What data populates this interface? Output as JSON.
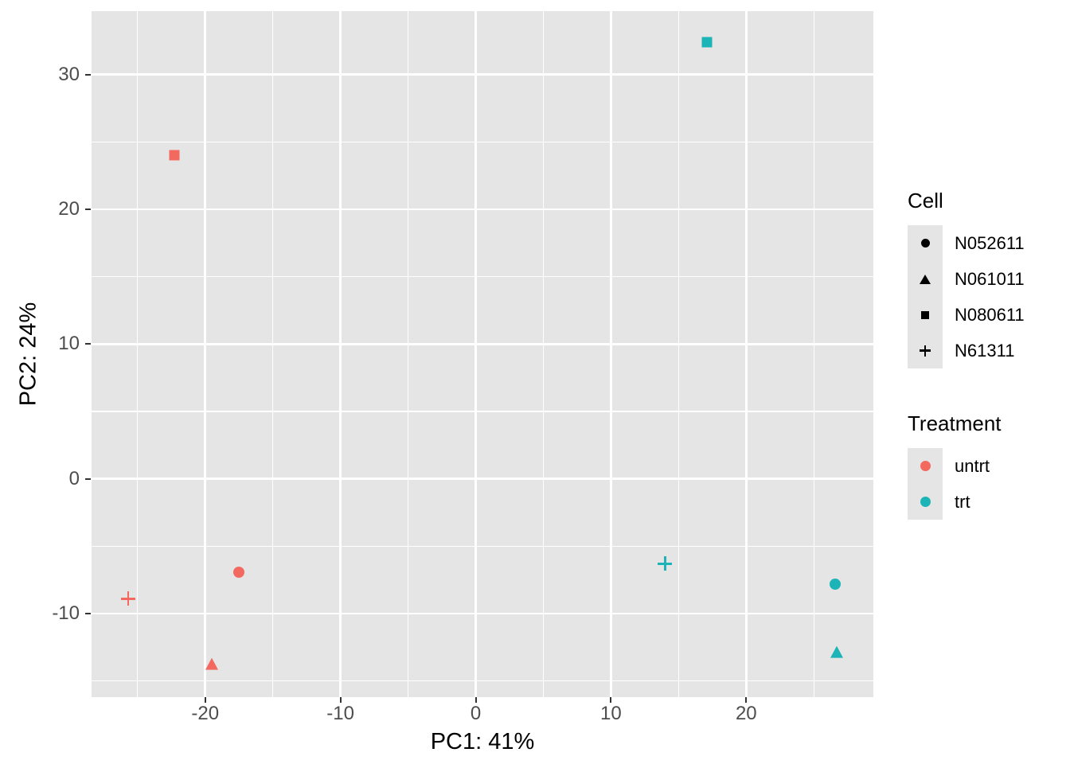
{
  "chart_data": {
    "type": "scatter",
    "title": "",
    "xlabel": "PC1: 41%",
    "ylabel": "PC2: 24%",
    "xlim": [
      -28.4,
      29.4
    ],
    "ylim": [
      -16.2,
      34.7
    ],
    "x_major_ticks": [
      -20,
      -10,
      0,
      10,
      20
    ],
    "x_minor_ticks": [
      -25,
      -15,
      -5,
      5,
      15,
      25
    ],
    "y_major_ticks": [
      -10,
      0,
      10,
      20,
      30
    ],
    "y_minor_ticks": [
      -15,
      -5,
      5,
      15,
      25
    ],
    "grid": true,
    "legend_position": "right",
    "panel_bg": "#E5E5E5",
    "grid_color": "#FFFFFF",
    "tick_color": "#333333",
    "tick_label_color": "#4D4D4D",
    "points": [
      {
        "cell": "N080611",
        "treatment": "untrt",
        "x": -22.3,
        "y": 24.0
      },
      {
        "cell": "N080611",
        "treatment": "trt",
        "x": 17.1,
        "y": 32.4
      },
      {
        "cell": "N052611",
        "treatment": "untrt",
        "x": -17.5,
        "y": -6.9
      },
      {
        "cell": "N61311",
        "treatment": "untrt",
        "x": -25.7,
        "y": -8.9
      },
      {
        "cell": "N061011",
        "treatment": "untrt",
        "x": -19.5,
        "y": -13.8
      },
      {
        "cell": "N61311",
        "treatment": "trt",
        "x": 14.0,
        "y": -6.3
      },
      {
        "cell": "N052611",
        "treatment": "trt",
        "x": 26.6,
        "y": -7.8
      },
      {
        "cell": "N061011",
        "treatment": "trt",
        "x": 26.7,
        "y": -12.9
      }
    ],
    "shape_map": {
      "N052611": "circle",
      "N061011": "triangle",
      "N080611": "square",
      "N61311": "plus"
    },
    "color_map": {
      "untrt": "#F3695F",
      "trt": "#1CB4B6"
    }
  },
  "legends": {
    "cell": {
      "title": "Cell",
      "items": [
        {
          "label": "N052611",
          "shape": "circle"
        },
        {
          "label": "N061011",
          "shape": "triangle"
        },
        {
          "label": "N080611",
          "shape": "square"
        },
        {
          "label": "N61311",
          "shape": "plus"
        }
      ],
      "glyph_color": "#000000"
    },
    "treatment": {
      "title": "Treatment",
      "items": [
        {
          "label": "untrt",
          "color": "#F3695F"
        },
        {
          "label": "trt",
          "color": "#1CB4B6"
        }
      ]
    }
  }
}
